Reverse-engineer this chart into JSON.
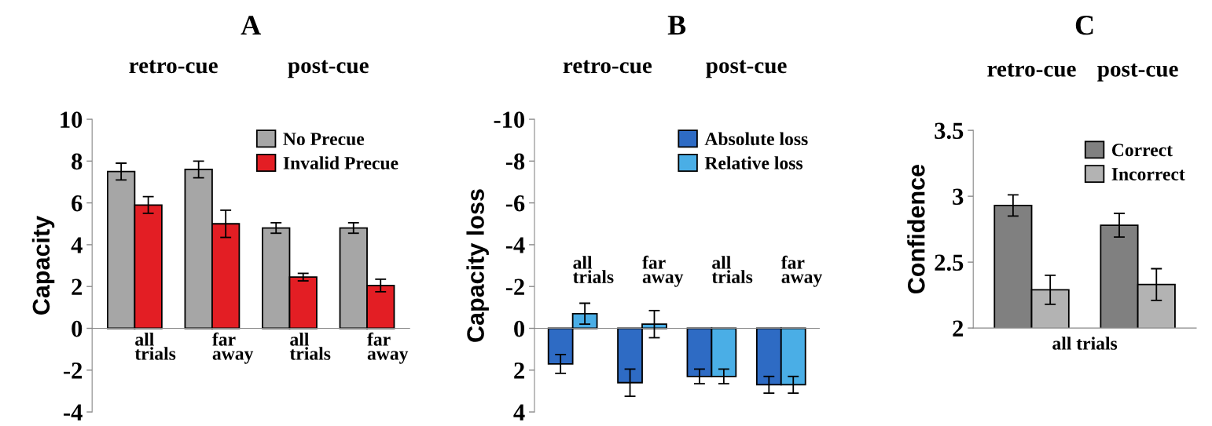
{
  "chart_data": [
    {
      "type": "bar",
      "title": "A",
      "ylabel": "Capacity",
      "categories": [
        "all\ntrials",
        "far\naway",
        "all\ntrials",
        "far\naway"
      ],
      "series": [
        {
          "name": "No Precue",
          "color": "#a6a6a6",
          "values": [
            7.5,
            7.6,
            4.8,
            4.8
          ],
          "errors": [
            0.4,
            0.4,
            0.25,
            0.25
          ]
        },
        {
          "name": "Invalid Precue",
          "color": "#e31e24",
          "values": [
            5.9,
            5.0,
            2.45,
            2.05
          ],
          "errors": [
            0.4,
            0.65,
            0.18,
            0.3
          ]
        }
      ],
      "ylim": [
        -4,
        10
      ],
      "yticks": [
        -4,
        -2,
        0,
        2,
        4,
        6,
        8,
        10
      ],
      "legend": "top right",
      "annotations": [
        "retro-cue",
        "post-cue"
      ]
    },
    {
      "type": "bar",
      "title": "B",
      "ylabel": "Capacity loss",
      "categories": [
        "all\ntrials",
        "far\naway",
        "all\ntrials",
        "far\naway"
      ],
      "series": [
        {
          "name": "Absolute loss",
          "color": "#2e6bc4",
          "values": [
            1.7,
            2.6,
            2.3,
            2.7
          ],
          "errors": [
            0.45,
            0.65,
            0.35,
            0.4
          ]
        },
        {
          "name": "Relative loss",
          "color": "#4aaee6",
          "values": [
            -0.7,
            -0.2,
            2.3,
            2.7
          ],
          "errors": [
            0.5,
            0.65,
            0.35,
            0.4
          ]
        }
      ],
      "ylim": [
        4,
        -10
      ],
      "yticks": [
        4,
        2,
        0,
        -2,
        -4,
        -6,
        -8,
        -10
      ],
      "legend": "top right",
      "annotations": [
        "retro-cue",
        "post-cue"
      ]
    },
    {
      "type": "bar",
      "title": "C",
      "ylabel": "Confidence",
      "xlabel": "all trials",
      "categories": [
        "retro-cue",
        "post-cue"
      ],
      "series": [
        {
          "name": "Correct",
          "color": "#808080",
          "values": [
            2.93,
            2.78
          ],
          "errors": [
            0.08,
            0.09
          ]
        },
        {
          "name": "Incorrect",
          "color": "#b3b3b3",
          "values": [
            2.29,
            2.33
          ],
          "errors": [
            0.11,
            0.12
          ]
        }
      ],
      "ylim": [
        2,
        3.5
      ],
      "yticks": [
        2,
        2.5,
        3,
        3.5
      ],
      "legend": "top right"
    }
  ]
}
